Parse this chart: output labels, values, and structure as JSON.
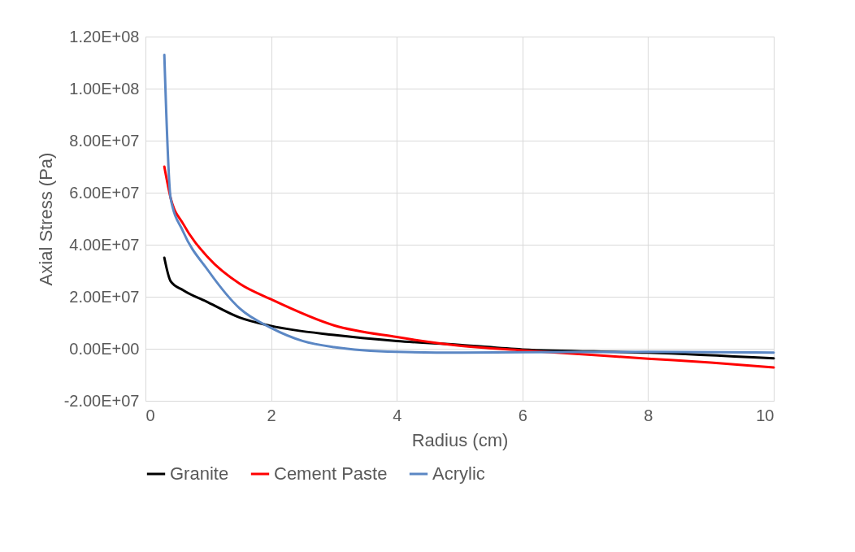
{
  "chart_data": {
    "type": "line",
    "xlabel": "Radius (cm)",
    "ylabel": "Axial Stress (Pa)",
    "xlim": [
      0,
      10
    ],
    "xticks": [
      0,
      2,
      4,
      6,
      8,
      10
    ],
    "ylim": [
      -20000000,
      120000000
    ],
    "yticks": [
      {
        "value": -20000000,
        "label": "-2.00E+07"
      },
      {
        "value": 0,
        "label": "0.00E+00"
      },
      {
        "value": 20000000,
        "label": "2.00E+07"
      },
      {
        "value": 40000000,
        "label": "4.00E+07"
      },
      {
        "value": 60000000,
        "label": "6.00E+07"
      },
      {
        "value": 80000000,
        "label": "8.00E+07"
      },
      {
        "value": 100000000,
        "label": "1.00E+08"
      },
      {
        "value": 120000000,
        "label": "1.20E+08"
      }
    ],
    "grid": true,
    "legend": "bottom",
    "marker": "none",
    "line_style": "solid",
    "series": [
      {
        "name": "Granite",
        "color": "#000000",
        "x": [
          0.3,
          0.4,
          0.6,
          1,
          1.5,
          2,
          3,
          4,
          5,
          6,
          8,
          10
        ],
        "values": [
          35000000,
          26000000,
          22500000,
          17800000,
          12000000,
          8800000,
          5300000,
          3000000,
          1500000,
          -300000,
          -1500000,
          -3700000
        ]
      },
      {
        "name": "Cement Paste",
        "color": "#ff0000",
        "x": [
          0.3,
          0.4,
          0.6,
          1,
          1.5,
          2,
          3,
          4,
          5,
          6,
          7,
          8,
          9,
          10
        ],
        "values": [
          70000000,
          58000000,
          48000000,
          35000000,
          25000000,
          19000000,
          9000000,
          4500000,
          1200000,
          -600000,
          -2200000,
          -3800000,
          -5300000,
          -7200000
        ]
      },
      {
        "name": "Acrylic",
        "color": "#5b87c4",
        "x": [
          0.3,
          0.4,
          0.6,
          1,
          1.5,
          2,
          2.5,
          3,
          4,
          5,
          6,
          8,
          10
        ],
        "values": [
          113000000,
          58000000,
          45000000,
          30000000,
          15500000,
          8000000,
          3000000,
          600000,
          -1200000,
          -1500000,
          -1300000,
          -1200000,
          -1500000
        ]
      }
    ]
  }
}
